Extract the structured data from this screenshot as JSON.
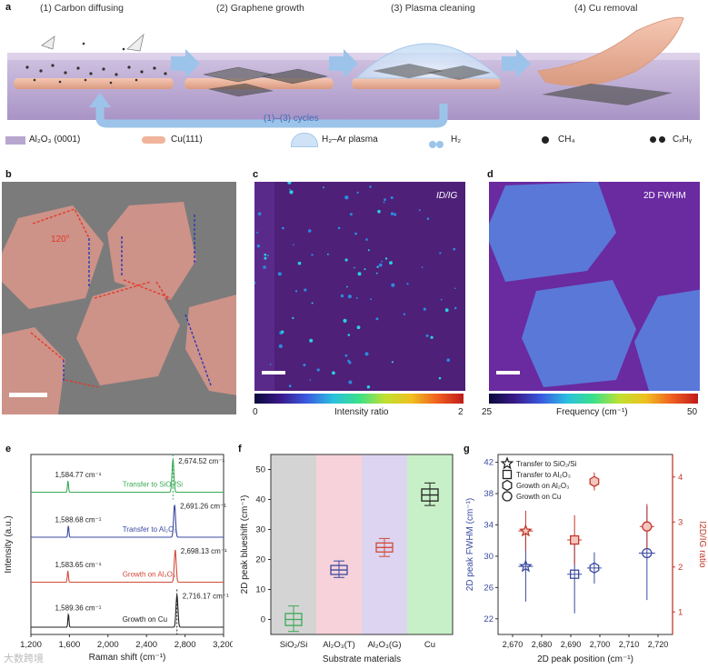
{
  "panel_a": {
    "label": "a",
    "steps": [
      "(1) Carbon diffusing",
      "(2) Graphene growth",
      "(3) Plasma cleaning",
      "(4) Cu removal"
    ],
    "cycle_label": "(1)–(3) cycles",
    "legend": {
      "substrate": "Al₂O₃ (0001)",
      "cu": "Cu(111)",
      "plasma": "H₂–Ar plasma",
      "h2": "H₂",
      "ch4": "CH₄",
      "cxhy": "CₓHᵧ"
    },
    "colors": {
      "substrate": "#b8a6cf",
      "cu": "#f0b49a",
      "arrow": "#8cb8e6",
      "plasma": "#cfe2f6"
    }
  },
  "panel_b": {
    "label": "b",
    "angle_label": "120°"
  },
  "panel_c": {
    "label": "c",
    "map_label": "ID/IG",
    "colorbar_min": "0",
    "colorbar_max": "2",
    "colorbar_label": "Intensity ratio"
  },
  "panel_d": {
    "label": "d",
    "map_label": "2D FWHM",
    "colorbar_min": "25",
    "colorbar_max": "50",
    "colorbar_label": "Frequency  (cm⁻¹)"
  },
  "watermark": "大数跨境",
  "chart_data": [
    {
      "panel": "e",
      "type": "line",
      "xlabel": "Raman shift (cm⁻¹)",
      "ylabel": "Intensity (a.u.)",
      "xlim": [
        1200,
        3200
      ],
      "xticks": [
        "1,200",
        "1,600",
        "2,000",
        "2,400",
        "2,800",
        "3,200"
      ],
      "series": [
        {
          "name": "Transfer to SiO₂/Si",
          "color": "#3aaa55",
          "g_peak": 1584.77,
          "g_label": "1,584.77 cm⁻¹",
          "twod_peak": 2674.52,
          "twod_label": "2,674.52 cm⁻¹",
          "g_height": 0.35,
          "twod_height": 1.0
        },
        {
          "name": "Transfer to Al₂O₃",
          "color": "#3a4aa0",
          "g_peak": 1588.68,
          "g_label": "1,588.68 cm⁻¹",
          "twod_peak": 2691.26,
          "twod_label": "2,691.26 cm⁻¹",
          "g_height": 0.35,
          "twod_height": 1.0
        },
        {
          "name": "Growth on Al₂O₃",
          "color": "#d04b3a",
          "g_peak": 1583.65,
          "g_label": "1,583.65 cm⁻¹",
          "twod_peak": 2698.13,
          "twod_label": "2,698.13 cm⁻¹",
          "g_height": 0.35,
          "twod_height": 1.0
        },
        {
          "name": "Growth on Cu",
          "color": "#222222",
          "g_peak": 1589.36,
          "g_label": "1,589.36 cm⁻¹",
          "twod_peak": 2716.17,
          "twod_label": "2,716.17 cm⁻¹",
          "g_height": 0.4,
          "twod_height": 1.0
        }
      ]
    },
    {
      "panel": "f",
      "type": "box",
      "xlabel": "Substrate materials",
      "ylabel": "2D peak blueshift (cm⁻¹)",
      "ylim": [
        -5,
        55
      ],
      "yticks": [
        0,
        10,
        20,
        30,
        40,
        50
      ],
      "categories": [
        "SiO₂/Si",
        "Al₂O₃(T)",
        "Al₂O₃(G)",
        "Cu"
      ],
      "boxes": [
        {
          "min": -4,
          "q1": -2,
          "median": 0,
          "q3": 2,
          "max": 4.5,
          "color": "#3aaa55",
          "bg": "#d4d4d4"
        },
        {
          "min": 14,
          "q1": 15,
          "median": 16.5,
          "q3": 18,
          "max": 19.5,
          "color": "#3a4aa0",
          "bg": "#f8d2da"
        },
        {
          "min": 21,
          "q1": 22.5,
          "median": 24,
          "q3": 25.5,
          "max": 27,
          "color": "#d04b3a",
          "bg": "#dcd4f0"
        },
        {
          "min": 38,
          "q1": 39.5,
          "median": 41.5,
          "q3": 43.5,
          "max": 45.5,
          "color": "#222222",
          "bg": "#c8f0c8"
        }
      ]
    },
    {
      "panel": "g",
      "type": "scatter",
      "xlabel": "2D peak position (cm⁻¹)",
      "ylabel_left": "2D peak FWHM (cm⁻¹)",
      "ylabel_right": "I2D/IG ratio",
      "xlim": [
        2665,
        2725
      ],
      "xticks": [
        2670,
        2680,
        2690,
        2700,
        2710,
        2720
      ],
      "xtick_labels": [
        "2,670",
        "2,680",
        "2,690",
        "2,700",
        "2,710",
        "2,720"
      ],
      "ylim_left": [
        20,
        43
      ],
      "yticks_left": [
        22,
        26,
        30,
        34,
        38,
        42
      ],
      "ylim_right": [
        0.5,
        4.5
      ],
      "yticks_right": [
        1,
        2,
        3,
        4
      ],
      "legend": [
        "Transfer to SiO₂/Si",
        "Transfer to Al₂O₃",
        "Growth on Al₂O₃",
        "Growth on Cu"
      ],
      "fwhm_points": [
        {
          "x": 2674.5,
          "y": 28.7,
          "xerr": 2.5,
          "yerr": 4.5,
          "marker": "star"
        },
        {
          "x": 2691.3,
          "y": 27.7,
          "xerr": 2.5,
          "yerr": 5.0,
          "marker": "square"
        },
        {
          "x": 2698.1,
          "y": 28.5,
          "xerr": 2.5,
          "yerr": 2.0,
          "marker": "hexagon"
        },
        {
          "x": 2716.2,
          "y": 30.4,
          "xerr": 2.8,
          "yerr": 6.0,
          "marker": "circle"
        }
      ],
      "ratio_points": [
        {
          "x": 2674.5,
          "y": 2.8,
          "xerr": 2.5,
          "yerr": 0.45,
          "marker": "star"
        },
        {
          "x": 2691.3,
          "y": 2.6,
          "xerr": 2.5,
          "yerr": 0.55,
          "marker": "square"
        },
        {
          "x": 2698.1,
          "y": 3.9,
          "xerr": 1.5,
          "yerr": 0.2,
          "marker": "hexagon"
        },
        {
          "x": 2716.2,
          "y": 2.9,
          "xerr": 2.5,
          "yerr": 0.5,
          "marker": "circle"
        }
      ]
    }
  ]
}
